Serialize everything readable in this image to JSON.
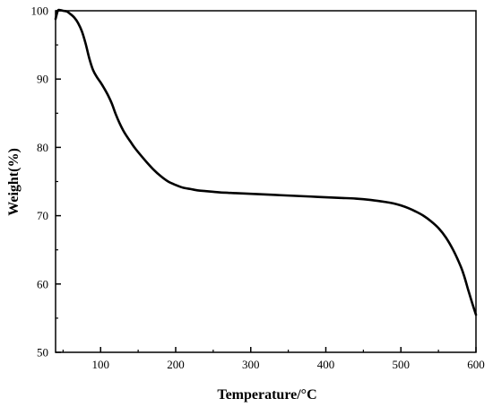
{
  "chart_data": {
    "type": "line",
    "title": "",
    "xlabel": "Temperature/°C",
    "ylabel": "Weight(%)",
    "xlim": [
      40,
      600
    ],
    "ylim": [
      50,
      100
    ],
    "xticks": [
      100,
      200,
      300,
      400,
      500,
      600
    ],
    "yticks": [
      50,
      60,
      70,
      80,
      90,
      100
    ],
    "grid": false,
    "legend": "none",
    "series": [
      {
        "color": "#000000",
        "x": [
          40,
          43,
          46,
          50,
          55,
          60,
          65,
          70,
          75,
          80,
          85,
          90,
          95,
          100,
          105,
          110,
          115,
          120,
          125,
          130,
          135,
          140,
          145,
          150,
          160,
          170,
          180,
          190,
          200,
          210,
          220,
          230,
          240,
          250,
          260,
          280,
          300,
          320,
          340,
          360,
          380,
          400,
          420,
          440,
          460,
          480,
          490,
          500,
          510,
          520,
          530,
          540,
          550,
          560,
          570,
          580,
          585,
          590,
          595,
          600
        ],
        "y": [
          98.8,
          100.0,
          100.1,
          100.0,
          99.9,
          99.5,
          99.0,
          98.2,
          97.0,
          95.2,
          93.0,
          91.3,
          90.3,
          89.5,
          88.6,
          87.6,
          86.4,
          84.9,
          83.6,
          82.5,
          81.6,
          80.8,
          80.0,
          79.3,
          78.0,
          76.8,
          75.8,
          75.0,
          74.5,
          74.1,
          73.9,
          73.7,
          73.6,
          73.5,
          73.4,
          73.3,
          73.2,
          73.1,
          73.0,
          72.9,
          72.8,
          72.7,
          72.6,
          72.5,
          72.3,
          72.0,
          71.8,
          71.5,
          71.1,
          70.6,
          70.0,
          69.2,
          68.2,
          66.8,
          64.9,
          62.5,
          60.9,
          59.0,
          57.2,
          55.5
        ]
      }
    ]
  }
}
